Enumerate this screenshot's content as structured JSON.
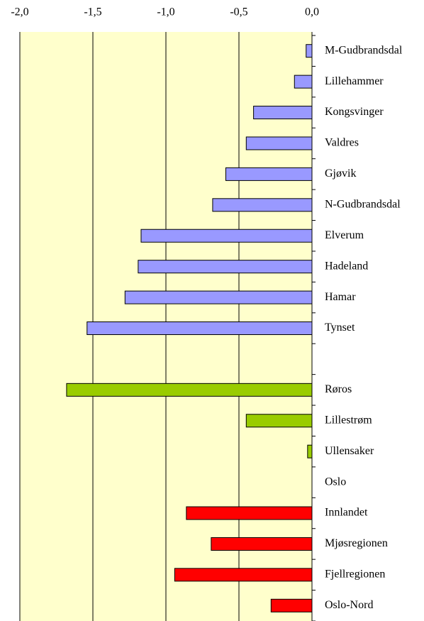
{
  "chart_data": {
    "type": "bar",
    "orientation": "horizontal",
    "categories": [
      "M-Gudbrandsdal",
      "Lillehammer",
      "Kongsvinger",
      "Valdres",
      "Gjøvik",
      "N-Gudbrandsdal",
      "Elverum",
      "Hadeland",
      "Hamar",
      "Tynset",
      null,
      "Røros",
      "Lillestrøm",
      "Ullensaker",
      "Oslo",
      "Innlandet",
      "Mjøsregionen",
      "Fjellregionen",
      "Oslo-Nord"
    ],
    "values": [
      -0.04,
      -0.12,
      -0.4,
      -0.45,
      -0.59,
      -0.68,
      -1.17,
      -1.19,
      -1.28,
      -1.54,
      null,
      -1.68,
      -0.45,
      -0.03,
      0,
      -0.86,
      -0.69,
      -0.94,
      -0.28
    ],
    "colors": [
      "#9999ff",
      "#9999ff",
      "#9999ff",
      "#9999ff",
      "#9999ff",
      "#9999ff",
      "#9999ff",
      "#9999ff",
      "#9999ff",
      "#9999ff",
      null,
      "#99cc00",
      "#99cc00",
      "#99cc00",
      "#99cc00",
      "#ff0000",
      "#ff0000",
      "#ff0000",
      "#ff0000"
    ],
    "xlim": [
      -2.0,
      0.0
    ],
    "xticks": [
      {
        "value": -2.0,
        "label": "-2,0"
      },
      {
        "value": -1.5,
        "label": "-1,5"
      },
      {
        "value": -1.0,
        "label": "-1,0"
      },
      {
        "value": -0.5,
        "label": "-0,5"
      },
      {
        "value": 0.0,
        "label": "0,0"
      }
    ],
    "grid": true
  }
}
